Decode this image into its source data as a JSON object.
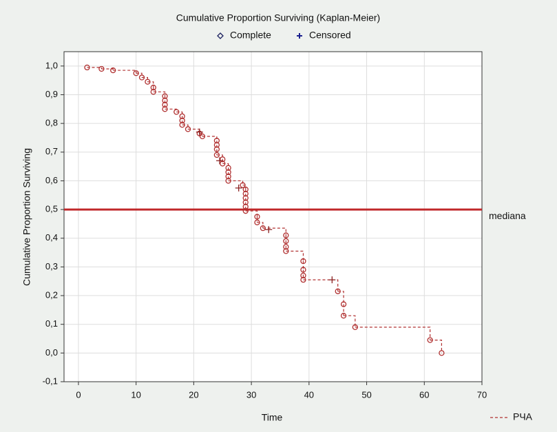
{
  "chart_data": {
    "type": "survival",
    "title": "Cumulative Proportion Surviving (Kaplan-Meier)",
    "xlabel": "Time",
    "ylabel": "Cumulative Proportion Surviving",
    "xlim": [
      -2.5,
      70
    ],
    "ylim": [
      -0.1,
      1.05
    ],
    "xticks": [
      0,
      10,
      20,
      30,
      40,
      50,
      60,
      70
    ],
    "yticks": [
      {
        "value": -0.1,
        "label": "-0,1"
      },
      {
        "value": 0,
        "label": "0,0"
      },
      {
        "value": 0.1,
        "label": "0,1"
      },
      {
        "value": 0.2,
        "label": "0,2"
      },
      {
        "value": 0.3,
        "label": "0,3"
      },
      {
        "value": 0.4,
        "label": "0,4"
      },
      {
        "value": 0.5,
        "label": "0,5"
      },
      {
        "value": 0.6,
        "label": "0,6"
      },
      {
        "value": 0.7,
        "label": "0,7"
      },
      {
        "value": 0.8,
        "label": "0,8"
      },
      {
        "value": 0.9,
        "label": "0,9"
      },
      {
        "value": 1,
        "label": "1,0"
      }
    ],
    "grid": true,
    "curve": {
      "name": "РЧА",
      "color": "#b03030"
    },
    "series": [
      {
        "name": "Complete",
        "marker": "circle",
        "color": "#b03030",
        "legend_color": "#1a1f5e",
        "x": [
          1.5,
          4,
          6,
          10,
          11,
          12,
          13,
          13,
          15,
          15,
          15,
          15,
          17,
          18,
          18,
          18,
          19,
          21,
          21.5,
          24,
          24,
          24,
          24,
          25,
          25,
          26,
          26,
          26,
          26,
          28.5,
          29,
          29,
          29,
          29,
          29,
          29,
          31,
          31,
          32,
          36,
          36,
          36,
          36,
          39,
          39,
          39,
          39,
          45,
          46,
          46,
          48,
          61,
          63
        ],
        "values": [
          0.995,
          0.99,
          0.985,
          0.975,
          0.96,
          0.945,
          0.925,
          0.91,
          0.895,
          0.88,
          0.865,
          0.85,
          0.84,
          0.825,
          0.81,
          0.795,
          0.78,
          0.765,
          0.755,
          0.74,
          0.725,
          0.71,
          0.69,
          0.675,
          0.66,
          0.645,
          0.63,
          0.615,
          0.6,
          0.585,
          0.57,
          0.555,
          0.54,
          0.525,
          0.51,
          0.495,
          0.475,
          0.455,
          0.435,
          0.41,
          0.39,
          0.37,
          0.355,
          0.32,
          0.29,
          0.27,
          0.255,
          0.215,
          0.17,
          0.13,
          0.09,
          0.045,
          0
        ]
      },
      {
        "name": "Censored",
        "marker": "plus",
        "color": "#8a2020",
        "legend_color": "#1a1f8e",
        "x": [
          21,
          24.5,
          27.8,
          33,
          44
        ],
        "values": [
          0.77,
          0.67,
          0.575,
          0.43,
          0.255
        ]
      }
    ],
    "reference_line": {
      "value": 0.5,
      "label": "mediana",
      "color": "#c0282a"
    }
  }
}
